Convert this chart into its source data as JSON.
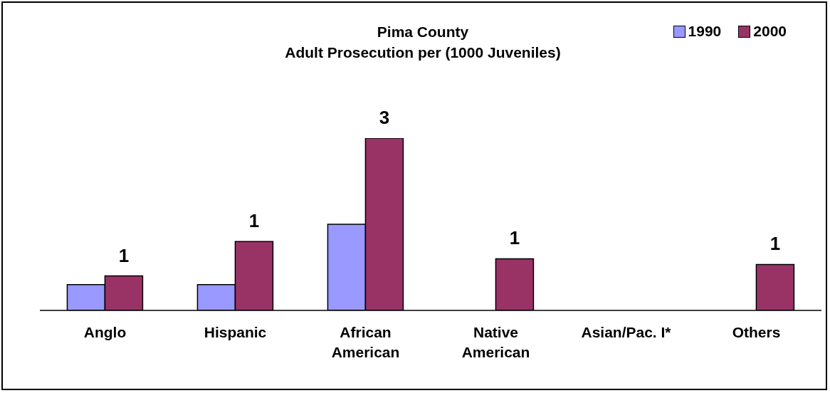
{
  "chart_data": {
    "type": "bar",
    "title": "Pima County\nAdult Prosecution per (1000 Juveniles)",
    "legend": "top right",
    "categories": [
      "Anglo",
      "Hispanic",
      "African American",
      "Native American",
      "Asian/Pac. I*",
      "Others"
    ],
    "series": [
      {
        "name": "1990",
        "color": "#9999ff",
        "values": [
          0.45,
          0.45,
          1.5,
          null,
          null,
          null
        ]
      },
      {
        "name": "2000",
        "color": "#993366",
        "values": [
          0.6,
          1.2,
          3,
          0.9,
          null,
          0.8
        ],
        "value_labels": [
          "1",
          "1",
          "3",
          "1",
          null,
          "1"
        ]
      }
    ]
  }
}
